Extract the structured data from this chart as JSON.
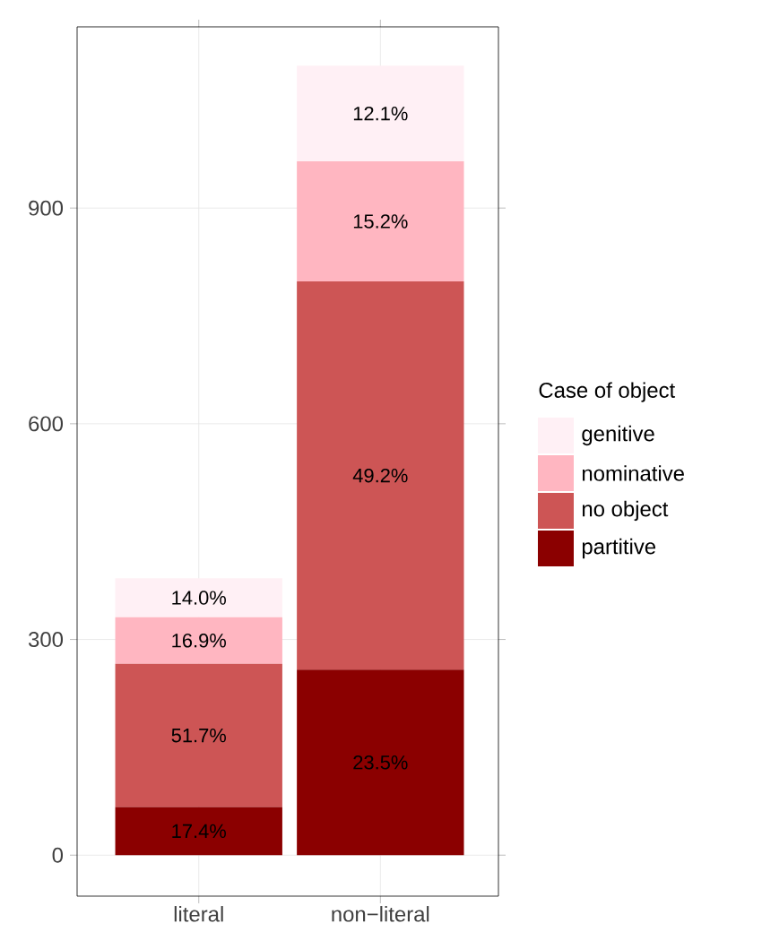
{
  "chart_data": {
    "type": "bar",
    "stacked": true,
    "categories": [
      "literal",
      "non−literal"
    ],
    "series": [
      {
        "name": "partitive",
        "color": "#8b0000",
        "values": [
          67,
          258
        ]
      },
      {
        "name": "no object",
        "color": "#cd5555",
        "values": [
          199,
          540
        ]
      },
      {
        "name": "nominative",
        "color": "#ffb6c1",
        "values": [
          65,
          167
        ]
      },
      {
        "name": "genitive",
        "color": "#fff0f5",
        "values": [
          54,
          133
        ]
      }
    ],
    "annotations": [
      "17.4%",
      "51.7%",
      "16.9%",
      "14.0%",
      "23.5%",
      "49.2%",
      "15.2%",
      "12.1%"
    ],
    "ylim": [
      -57,
      1152
    ],
    "yticks": [
      0,
      300,
      600,
      900
    ],
    "grid": true,
    "legend": "right",
    "legend_title": "Case of object"
  }
}
